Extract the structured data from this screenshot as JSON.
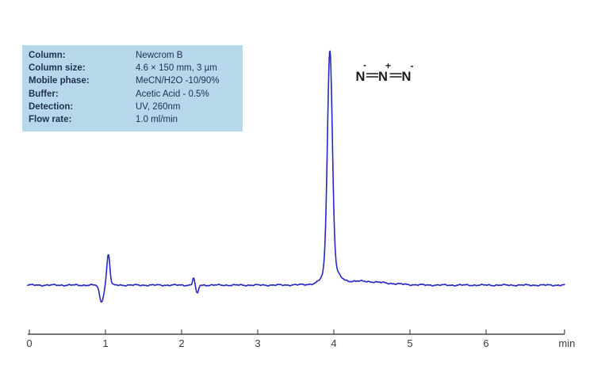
{
  "info_box": {
    "rows": [
      {
        "label": "Column:",
        "value": "Newcrom B"
      },
      {
        "label": "Column size:",
        "value": "4.6 × 150 mm, 3 µm"
      },
      {
        "label": "Mobile phase:",
        "value": "MeCN/H2O -10/90%"
      },
      {
        "label": "Buffer:",
        "value": "Acetic Acid - 0.5%"
      },
      {
        "label": "Detection:",
        "value": "UV, 260nm"
      },
      {
        "label": "Flow rate:",
        "value": "1.0 ml/min"
      }
    ]
  },
  "structure": {
    "compound": "azide anion",
    "atoms": [
      "N",
      "N",
      "N"
    ],
    "charges": [
      "-",
      "+",
      "-"
    ]
  },
  "chart_data": {
    "type": "line",
    "title": "",
    "xlabel": "min",
    "ylabel": "",
    "x_ticks": [
      0,
      1,
      2,
      3,
      4,
      5,
      6
    ],
    "x_range": [
      0,
      7.03
    ],
    "grid": false,
    "legend": "none",
    "baseline_intensity": 0,
    "main_peak_retention_min": 3.95,
    "peaks": [
      {
        "name": "injection-dip",
        "t": 0.948,
        "amp": -21,
        "sigma": 0.026
      },
      {
        "name": "injection-spike",
        "t": 1.038,
        "amp": 39,
        "sigma": 0.02
      },
      {
        "name": "minor-artifact-up",
        "t": 2.157,
        "amp": 9,
        "sigma": 0.014
      },
      {
        "name": "minor-artifact-down",
        "t": 2.205,
        "amp": -11,
        "sigma": 0.016
      },
      {
        "name": "azide-main-peak",
        "t": 3.948,
        "amp": 272,
        "sigma": 0.032
      },
      {
        "name": "azide-peak-base",
        "t": 3.96,
        "amp": 22,
        "sigma": 0.085
      },
      {
        "name": "post-peak-tail",
        "t": 4.3,
        "amp": 5,
        "sigma": 0.35
      }
    ],
    "noise_amp": 0.8
  },
  "colors": {
    "box_bg": "#b7d7ea",
    "box_text": "#1f3050",
    "trace": "#2828c4",
    "axis": "#4a4a4a",
    "structure": "#1a1a1a"
  }
}
